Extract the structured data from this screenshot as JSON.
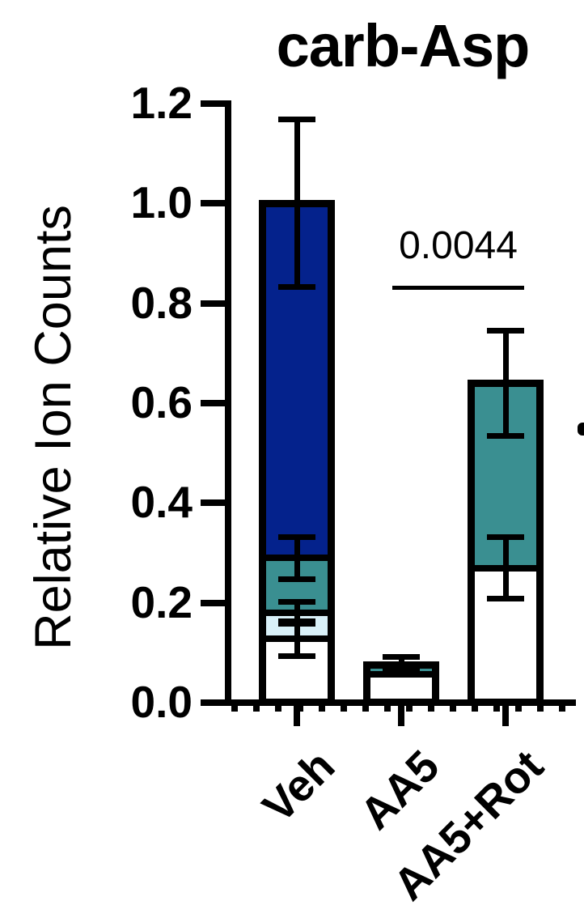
{
  "figure": {
    "title": "carb-Asp",
    "y_axis_label": "Relative Ion Counts",
    "significance": {
      "p_value": "0.0044",
      "compares": [
        "AA5",
        "AA5+Rot"
      ]
    }
  },
  "chart_data": {
    "type": "bar",
    "stacked": true,
    "title": "carb-Asp",
    "xlabel": "",
    "ylabel": "Relative Ion Counts",
    "ylim": [
      0,
      1.2
    ],
    "yticks": [
      0.0,
      0.2,
      0.4,
      0.6,
      0.8,
      1.0,
      1.2
    ],
    "ytick_labels": [
      "0.0",
      "0.2",
      "0.4",
      "0.6",
      "0.8",
      "1.0",
      "1.2"
    ],
    "categories": [
      "Veh",
      "AA5",
      "AA5+Rot"
    ],
    "series": [
      {
        "name": "segment-white",
        "color": "#ffffff",
        "values": [
          0.128,
          0.056,
          0.27
        ],
        "errors": [
          0.035,
          0,
          0.062
        ]
      },
      {
        "name": "segment-light-blue",
        "color": "#d9f0f8",
        "values": [
          0.052,
          0,
          0
        ],
        "errors": [
          0.022,
          0,
          0
        ]
      },
      {
        "name": "segment-teal",
        "color": "#3a8f91",
        "values": [
          0.11,
          0.021,
          0.37
        ],
        "errors": [
          0.042,
          0.014,
          0.105
        ]
      },
      {
        "name": "segment-dark-blue",
        "color": "#04228c",
        "values": [
          0.71,
          0,
          0
        ],
        "errors": [
          0.168,
          0,
          0
        ]
      }
    ],
    "stack_totals": [
      1.0,
      0.077,
      0.64
    ],
    "error_bar_style": "both-directions-with-caps",
    "bar_outline_color": "#000000",
    "annotations": [
      {
        "type": "p-value",
        "text": "0.0044",
        "between": [
          "AA5",
          "AA5+Rot"
        ],
        "line": true
      }
    ],
    "legend": "none",
    "grid": false
  }
}
